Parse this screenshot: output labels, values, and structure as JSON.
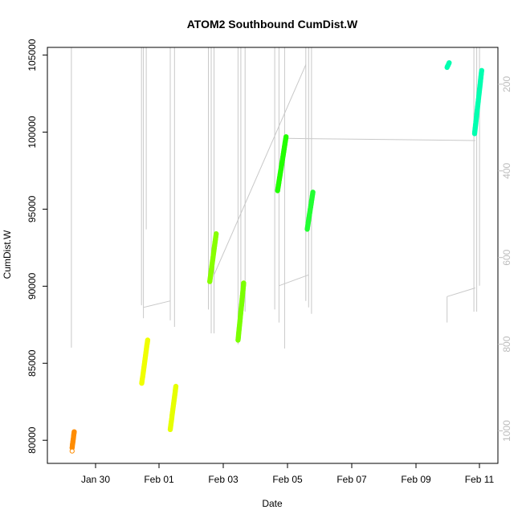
{
  "chart_data": {
    "type": "scatter",
    "title": "ATOM2 Southbound CumDist.W",
    "xlabel": "Date",
    "ylabel": "CumDist.W",
    "x_ticks": [
      "Jan 30",
      "Feb 01",
      "Feb 03",
      "Feb 05",
      "Feb 07",
      "Feb 09",
      "Feb 11"
    ],
    "y_ticks": [
      80000,
      85000,
      90000,
      95000,
      100000,
      105000
    ],
    "y2_ticks": [
      200,
      400,
      600,
      800,
      1000
    ],
    "xlim": [
      "2024-01-29 05:00",
      "2024-02-11 12:00"
    ],
    "ylim": [
      78500,
      105500
    ],
    "y2lim": [
      1075,
      115
    ],
    "grid": false,
    "colors": {
      "axis": "#000000",
      "secondary_axis": "#bdbdbd",
      "background_lines": "#c8c8c8"
    },
    "series": [
      {
        "color": "#ff8c00",
        "x": [
          "2024-01-29 22:30",
          "2024-01-29 23:59"
        ],
        "y": [
          79500,
          80550
        ]
      },
      {
        "color": "#f0ff00",
        "x": [
          "2024-01-31 23:50",
          "2024-02-01 04:00"
        ],
        "y": [
          83700,
          86500
        ]
      },
      {
        "color": "#e6ff00",
        "x": [
          "2024-02-01 20:00",
          "2024-02-02 00:00"
        ],
        "y": [
          80700,
          83500
        ]
      },
      {
        "color": "#88ff00",
        "x": [
          "2024-02-03 00:00",
          "2024-02-03 04:30"
        ],
        "y": [
          90300,
          93400
        ]
      },
      {
        "color": "#7aff00",
        "x": [
          "2024-02-03 20:00",
          "2024-02-04 00:00"
        ],
        "y": [
          86500,
          90200
        ]
      },
      {
        "color": "#22ff00",
        "x": [
          "2024-02-05 00:00",
          "2024-02-05 06:00"
        ],
        "y": [
          96200,
          99700
        ]
      },
      {
        "color": "#22ff33",
        "x": [
          "2024-02-05 21:00",
          "2024-02-06 01:00"
        ],
        "y": [
          93700,
          96100
        ]
      },
      {
        "color": "#00ffb0",
        "x": [
          "2024-02-10 00:00",
          "2024-02-10 01:30"
        ],
        "y": [
          104200,
          104500
        ]
      },
      {
        "color": "#00ffb0",
        "x": [
          "2024-02-10 19:30",
          "2024-02-11 00:30"
        ],
        "y": [
          99900,
          104000
        ]
      }
    ],
    "background_segments": [
      {
        "x": [
          "2024-01-29 22:00",
          "2024-01-29 22:00"
        ],
        "y2": [
          115,
          808
        ]
      },
      {
        "x": [
          "2024-01-31 23:40",
          "2024-01-31 23:40"
        ],
        "y2": [
          115,
          710
        ]
      },
      {
        "x": [
          "2024-02-01 01:00",
          "2024-02-01 01:00"
        ],
        "y2": [
          115,
          740
        ]
      },
      {
        "x": [
          "2024-02-01 03:00",
          "2024-02-01 03:00"
        ],
        "y2": [
          115,
          535
        ]
      },
      {
        "x": [
          "2024-02-01 01:00",
          "2024-02-01 20:00"
        ],
        "y2": [
          715,
          700
        ]
      },
      {
        "x": [
          "2024-02-01 20:00",
          "2024-02-01 20:00"
        ],
        "y2": [
          115,
          745
        ]
      },
      {
        "x": [
          "2024-02-01 23:00",
          "2024-02-01 23:00"
        ],
        "y2": [
          115,
          760
        ]
      },
      {
        "x": [
          "2024-02-02 23:00",
          "2024-02-02 23:00"
        ],
        "y2": [
          115,
          720
        ]
      },
      {
        "x": [
          "2024-02-03 01:00",
          "2024-02-03 01:00"
        ],
        "y2": [
          115,
          775
        ]
      },
      {
        "x": [
          "2024-02-03 03:00",
          "2024-02-03 03:00"
        ],
        "y2": [
          115,
          775
        ]
      },
      {
        "x": [
          "2024-02-03 03:00",
          "2024-02-05 20:00"
        ],
        "y2": [
          640,
          155
        ]
      },
      {
        "x": [
          "2024-02-03 20:00",
          "2024-02-03 20:00"
        ],
        "y2": [
          115,
          800
        ]
      },
      {
        "x": [
          "2024-02-03 22:00",
          "2024-02-03 22:00"
        ],
        "y2": [
          115,
          690
        ]
      },
      {
        "x": [
          "2024-02-04 01:00",
          "2024-02-04 01:00"
        ],
        "y2": [
          115,
          725
        ]
      },
      {
        "x": [
          "2024-02-04 22:00",
          "2024-02-04 22:00"
        ],
        "y2": [
          115,
          720
        ]
      },
      {
        "x": [
          "2024-02-05 01:00",
          "2024-02-05 01:00"
        ],
        "y2": [
          115,
          750
        ]
      },
      {
        "x": [
          "2024-02-05 05:00",
          "2024-02-05 05:00"
        ],
        "y2": [
          115,
          810
        ]
      },
      {
        "x": [
          "2024-02-05 01:00",
          "2024-02-05 22:00"
        ],
        "y2": [
          665,
          640
        ]
      },
      {
        "x": [
          "2024-02-05 06:00",
          "2024-02-10 20:00"
        ],
        "y2": [
          325,
          330
        ]
      },
      {
        "x": [
          "2024-02-05 20:00",
          "2024-02-05 20:00"
        ],
        "y2": [
          115,
          700
        ]
      },
      {
        "x": [
          "2024-02-05 22:00",
          "2024-02-05 22:00"
        ],
        "y2": [
          115,
          715
        ]
      },
      {
        "x": [
          "2024-02-06 00:00",
          "2024-02-06 00:00"
        ],
        "y2": [
          115,
          730
        ]
      },
      {
        "x": [
          "2024-02-10 00:00",
          "2024-02-10 00:00"
        ],
        "y2": [
          690,
          750
        ]
      },
      {
        "x": [
          "2024-02-10 00:00",
          "2024-02-10 20:00"
        ],
        "y2": [
          690,
          670
        ]
      },
      {
        "x": [
          "2024-02-10 19:00",
          "2024-02-10 19:00"
        ],
        "y2": [
          115,
          725
        ]
      },
      {
        "x": [
          "2024-02-10 21:00",
          "2024-02-10 21:00"
        ],
        "y2": [
          115,
          725
        ]
      },
      {
        "x": [
          "2024-02-10 23:00",
          "2024-02-10 23:00"
        ],
        "y2": [
          115,
          665
        ]
      }
    ],
    "open_point": {
      "x": "2024-01-29 22:30",
      "y": 79300,
      "color": "#ff8c00"
    }
  }
}
